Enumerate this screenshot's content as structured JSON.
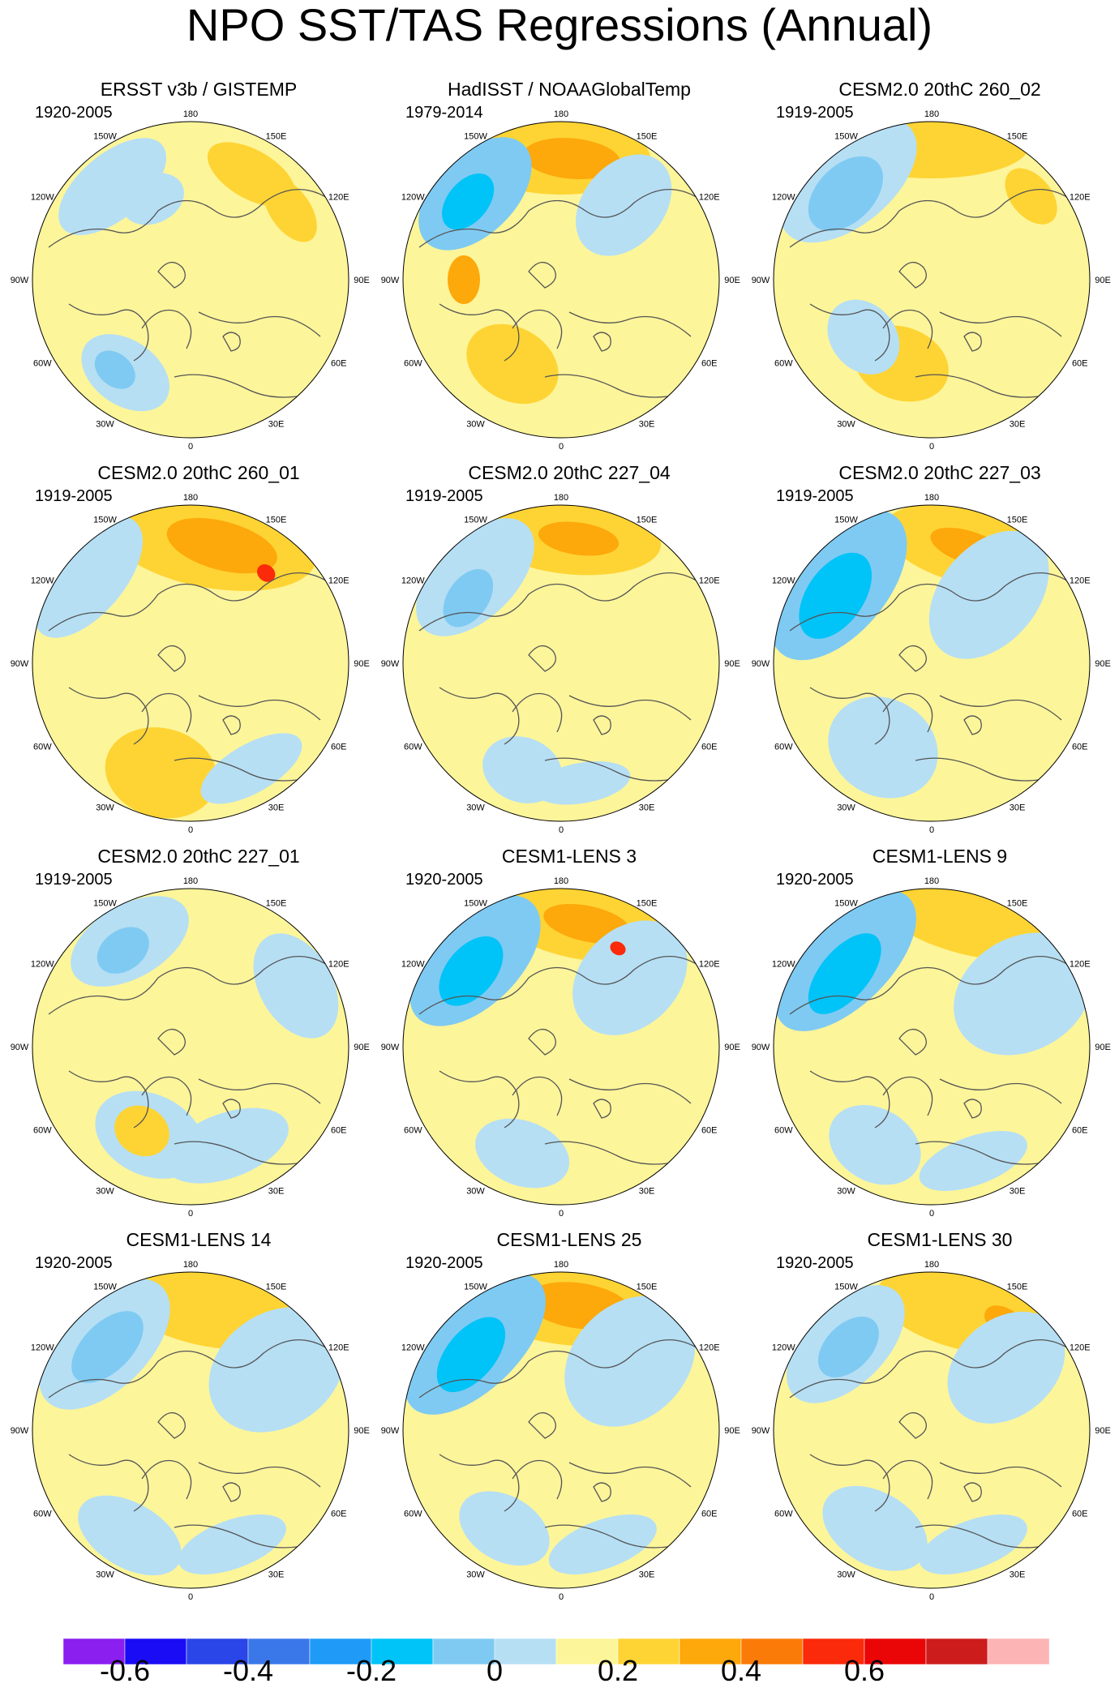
{
  "figure": {
    "title": "NPO SST/TAS Regressions (Annual)",
    "longitude_labels": [
      "180",
      "150E",
      "120E",
      "90E",
      "60E",
      "30E",
      "0",
      "30W",
      "60W",
      "90W",
      "120W",
      "150W"
    ],
    "panels": [
      {
        "title": "ERSST v3b / GISTEMP",
        "period": "1920-2005"
      },
      {
        "title": "HadISST / NOAAGlobalTemp",
        "period": "1979-2014"
      },
      {
        "title": "CESM2.0 20thC 260_02",
        "period": "1919-2005"
      },
      {
        "title": "CESM2.0 20thC 260_01",
        "period": "1919-2005"
      },
      {
        "title": "CESM2.0 20thC 227_04",
        "period": "1919-2005"
      },
      {
        "title": "CESM2.0 20thC 227_03",
        "period": "1919-2005"
      },
      {
        "title": "CESM2.0 20thC 227_01",
        "period": "1919-2005"
      },
      {
        "title": "CESM1-LENS 3",
        "period": "1920-2005"
      },
      {
        "title": "CESM1-LENS 9",
        "period": "1920-2005"
      },
      {
        "title": "CESM1-LENS 14",
        "period": "1920-2005"
      },
      {
        "title": "CESM1-LENS 25",
        "period": "1920-2005"
      },
      {
        "title": "CESM1-LENS 30",
        "period": "1920-2005"
      }
    ]
  },
  "colorbar": {
    "colors": [
      "#8a1ff0",
      "#1a0cf5",
      "#2a45e8",
      "#3a78ea",
      "#1f9bf7",
      "#00c3f8",
      "#7fcaf2",
      "#b6dff4",
      "#fdf59a",
      "#fed434",
      "#fda80b",
      "#fb7b08",
      "#fb2a0a",
      "#ea0606",
      "#cd1c1c",
      "#fcb4b4"
    ],
    "tick_labels": [
      "-0.6",
      "-0.4",
      "-0.2",
      "0",
      "0.2",
      "0.4",
      "0.6"
    ]
  },
  "colors": {
    "ocean_neutral": "#fdf59a",
    "land_outline": "#555555",
    "blue_weak": "#b6dff4",
    "blue_mid": "#7fcaf2",
    "blue_strong": "#00c3f8",
    "orange_weak": "#fed434",
    "orange_mid": "#fda80b",
    "red": "#fb2a0a"
  }
}
